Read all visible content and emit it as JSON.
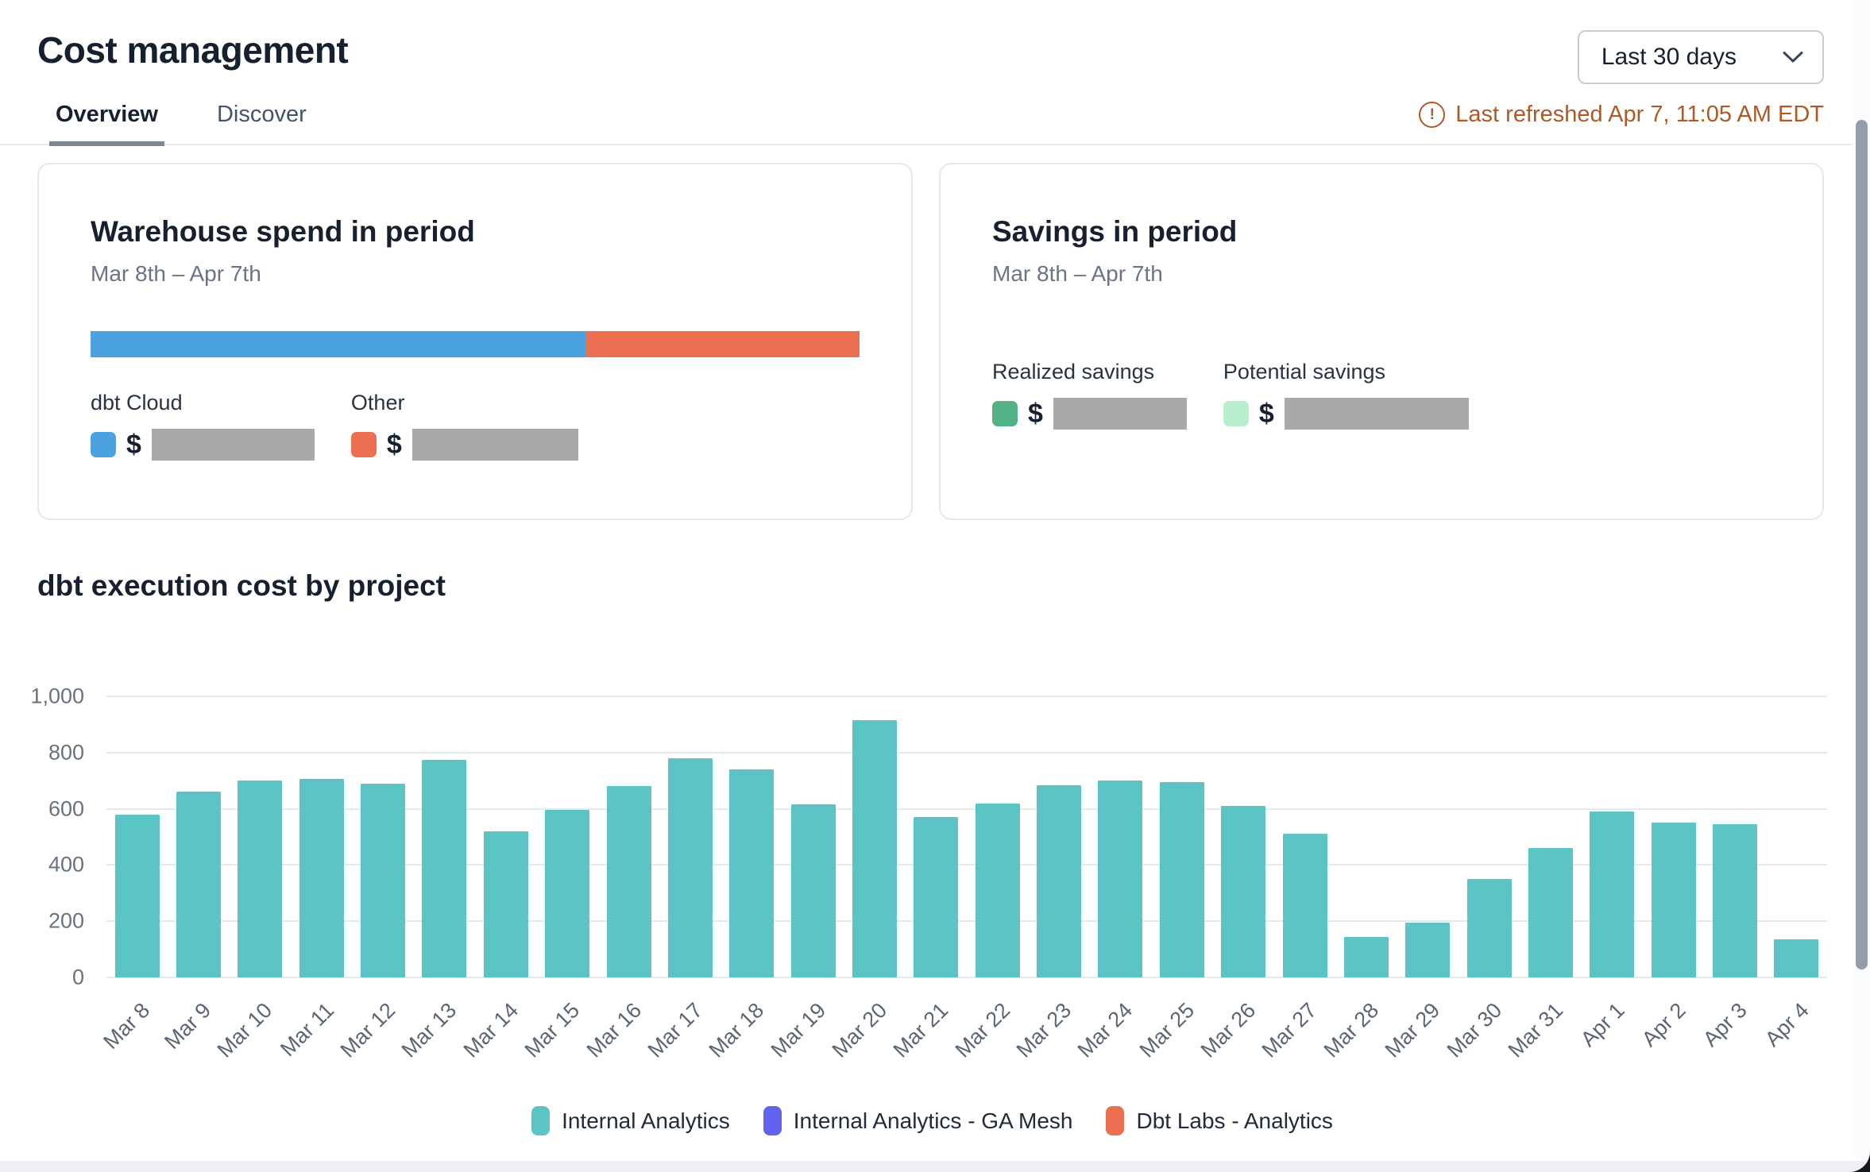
{
  "header": {
    "title": "Cost management",
    "tabs": [
      {
        "label": "Overview",
        "active": true
      },
      {
        "label": "Discover",
        "active": false
      }
    ],
    "range_selector": {
      "value": "Last 30 days"
    },
    "last_refreshed": "Last refreshed Apr 7, 11:05 AM EDT"
  },
  "icons": {
    "warning_glyph": "!",
    "chevron_down": "v"
  },
  "colors": {
    "refresh_orange": "#ad5a26",
    "redaction_gray": "#a9a9a9",
    "accent_teal": "#5bc5c5"
  },
  "cards": {
    "warehouse": {
      "title": "Warehouse spend in period",
      "subtitle": "Mar 8th – Apr 7th",
      "currency_symbol": "$",
      "segments": [
        {
          "label": "dbt Cloud",
          "color": "#4aa2e0",
          "percent": 64.5
        },
        {
          "label": "Other",
          "color": "#ed6f52",
          "percent": 35.5
        }
      ]
    },
    "savings": {
      "title": "Savings in period",
      "subtitle": "Mar 8th – Apr 7th",
      "currency_symbol": "$",
      "items": [
        {
          "label": "Realized savings",
          "color": "#52b285"
        },
        {
          "label": "Potential savings",
          "color": "#b9efcd"
        }
      ]
    }
  },
  "chart_data": {
    "type": "bar",
    "title": "dbt execution cost by project",
    "categories": [
      "Mar 8",
      "Mar 9",
      "Mar 10",
      "Mar 11",
      "Mar 12",
      "Mar 13",
      "Mar 14",
      "Mar 15",
      "Mar 16",
      "Mar 17",
      "Mar 18",
      "Mar 19",
      "Mar 20",
      "Mar 21",
      "Mar 22",
      "Mar 23",
      "Mar 24",
      "Mar 25",
      "Mar 26",
      "Mar 27",
      "Mar 28",
      "Mar 29",
      "Mar 30",
      "Mar 31",
      "Apr 1",
      "Apr 2",
      "Apr 3",
      "Apr 4"
    ],
    "series": [
      {
        "name": "Internal Analytics",
        "color": "#5bc5c5",
        "values": [
          580,
          660,
          700,
          705,
          690,
          775,
          520,
          595,
          680,
          780,
          740,
          615,
          915,
          570,
          620,
          685,
          700,
          695,
          610,
          510,
          145,
          195,
          350,
          460,
          590,
          550,
          545,
          135
        ]
      }
    ],
    "legend": [
      {
        "label": "Internal Analytics",
        "color": "#5bc5c5"
      },
      {
        "label": "Internal Analytics - GA Mesh",
        "color": "#6163ef"
      },
      {
        "label": "Dbt Labs - Analytics",
        "color": "#ed6f52"
      }
    ],
    "xlabel": "",
    "ylabel": "",
    "ylim": [
      0,
      1000
    ],
    "yticks": [
      {
        "value": 0,
        "label": "0"
      },
      {
        "value": 200,
        "label": "200"
      },
      {
        "value": 400,
        "label": "400"
      },
      {
        "value": 600,
        "label": "600"
      },
      {
        "value": 800,
        "label": "800"
      },
      {
        "value": 1000,
        "label": "1,000"
      }
    ],
    "grid": true,
    "legend_position": "bottom"
  }
}
